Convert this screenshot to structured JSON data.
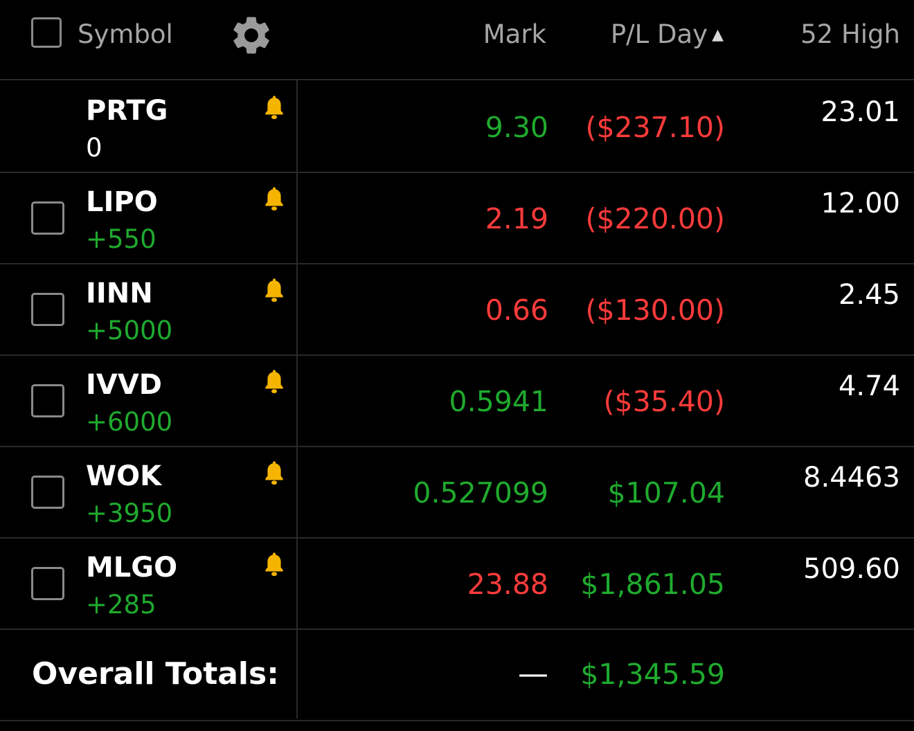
{
  "colors": {
    "positive": "#1faa2e",
    "negative": "#ff3b3b",
    "bell": "#f5b400",
    "header_text": "#a6a6a6"
  },
  "header": {
    "symbol": "Symbol",
    "mark": "Mark",
    "pl_day": "P/L Day",
    "sort_indicator": "▲",
    "high_52": "52 High"
  },
  "rows": [
    {
      "symbol": "PRTG",
      "qty": "0",
      "qty_tone": "neutral",
      "mark": "9.30",
      "mark_tone": "positive",
      "pl_day": "($237.10)",
      "pl_tone": "negative",
      "high": "23.01",
      "has_checkbox": false
    },
    {
      "symbol": "LIPO",
      "qty": "+550",
      "qty_tone": "positive",
      "mark": "2.19",
      "mark_tone": "negative",
      "pl_day": "($220.00)",
      "pl_tone": "negative",
      "high": "12.00",
      "has_checkbox": true
    },
    {
      "symbol": "IINN",
      "qty": "+5000",
      "qty_tone": "positive",
      "mark": "0.66",
      "mark_tone": "negative",
      "pl_day": "($130.00)",
      "pl_tone": "negative",
      "high": "2.45",
      "has_checkbox": true
    },
    {
      "symbol": "IVVD",
      "qty": "+6000",
      "qty_tone": "positive",
      "mark": "0.5941",
      "mark_tone": "positive",
      "pl_day": "($35.40)",
      "pl_tone": "negative",
      "high": "4.74",
      "has_checkbox": true
    },
    {
      "symbol": "WOK",
      "qty": "+3950",
      "qty_tone": "positive",
      "mark": "0.527099",
      "mark_tone": "positive",
      "pl_day": "$107.04",
      "pl_tone": "positive",
      "high": "8.4463",
      "has_checkbox": true
    },
    {
      "symbol": "MLGO",
      "qty": "+285",
      "qty_tone": "positive",
      "mark": "23.88",
      "mark_tone": "negative",
      "pl_day": "$1,861.05",
      "pl_tone": "positive",
      "high": "509.60",
      "has_checkbox": true
    }
  ],
  "totals": {
    "label": "Overall Totals:",
    "mark": "—",
    "pl_day": "$1,345.59"
  }
}
